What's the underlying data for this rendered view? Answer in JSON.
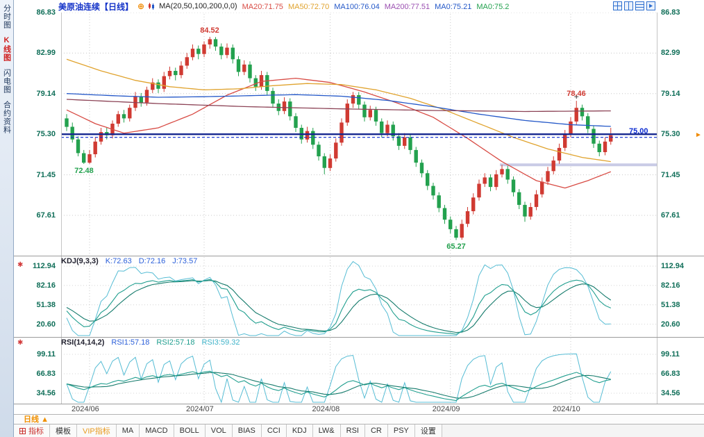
{
  "sidebar": {
    "tabs": [
      {
        "label": "分时图",
        "active": false
      },
      {
        "label": "K线图",
        "active": true
      },
      {
        "label": "闪电图",
        "active": false
      },
      {
        "label": "合约资料",
        "active": false
      }
    ]
  },
  "header": {
    "title": "美原油连续【日线】",
    "title_color": "#1433c8",
    "ma_label": "MA(20,50,100,200,0,0)",
    "ma_values": [
      {
        "text": "MA20:71.75",
        "color": "#d84b44"
      },
      {
        "text": "MA50:72.70",
        "color": "#e0a32e"
      },
      {
        "text": "MA100:76.04",
        "color": "#2458c8"
      },
      {
        "text": "MA200:77.51",
        "color": "#9a4fb0"
      },
      {
        "text": "MA0:75.21",
        "color": "#2458c8"
      },
      {
        "text": "MA0:75.2",
        "color": "#23a14e"
      }
    ]
  },
  "chart_data": {
    "type": "candlestick",
    "title": "美原油连续 日线 (US Crude Oil Continuous, Daily)",
    "up_color": "#d03a32",
    "down_color": "#23a14e",
    "y_axis_labels": [
      "86.83",
      "82.99",
      "79.14",
      "75.30",
      "71.45",
      "67.61"
    ],
    "month_labels": [
      "2024/06",
      "2024/07",
      "2024/08",
      "2024/09",
      "2024/10"
    ],
    "month_boundaries": [
      4,
      24,
      46,
      67,
      88
    ],
    "annotations": {
      "peak": "84.52",
      "low1": "72.48",
      "high2": "78.46",
      "low2": "65.27",
      "price": "75.00"
    },
    "price_line": {
      "value": 75.0,
      "color": "#0a2ad0"
    },
    "trend_line": {
      "value": 75.3,
      "color": "#16288f"
    },
    "segment_line": {
      "value": 72.4,
      "color": "#c9cbe6"
    },
    "candles": [
      [
        76.8,
        77.2,
        75.6,
        76.0
      ],
      [
        76.0,
        76.4,
        74.5,
        74.8
      ],
      [
        74.8,
        75.1,
        73.2,
        73.5
      ],
      [
        73.5,
        73.8,
        72.48,
        72.6
      ],
      [
        72.6,
        73.8,
        72.5,
        73.4
      ],
      [
        73.4,
        75.0,
        73.1,
        74.6
      ],
      [
        74.6,
        75.9,
        74.3,
        75.5
      ],
      [
        75.5,
        75.9,
        74.8,
        75.2
      ],
      [
        75.2,
        76.6,
        74.9,
        76.3
      ],
      [
        76.3,
        77.5,
        76.0,
        77.2
      ],
      [
        77.2,
        77.6,
        76.4,
        76.8
      ],
      [
        76.8,
        78.1,
        76.5,
        77.8
      ],
      [
        77.8,
        79.3,
        77.5,
        78.9
      ],
      [
        78.9,
        79.2,
        77.9,
        78.3
      ],
      [
        78.3,
        79.8,
        78.0,
        79.5
      ],
      [
        79.5,
        80.6,
        79.2,
        80.2
      ],
      [
        80.2,
        80.5,
        79.2,
        79.6
      ],
      [
        79.6,
        81.2,
        79.3,
        80.8
      ],
      [
        80.8,
        81.7,
        80.5,
        81.3
      ],
      [
        81.3,
        81.6,
        80.4,
        80.9
      ],
      [
        80.9,
        82.2,
        80.6,
        81.8
      ],
      [
        81.8,
        83.0,
        81.5,
        82.6
      ],
      [
        82.6,
        83.8,
        82.3,
        83.4
      ],
      [
        83.4,
        83.7,
        82.4,
        82.9
      ],
      [
        82.9,
        84.1,
        82.6,
        83.8
      ],
      [
        83.8,
        84.52,
        83.4,
        84.3
      ],
      [
        84.3,
        84.5,
        83.2,
        83.6
      ],
      [
        83.6,
        83.9,
        82.4,
        82.8
      ],
      [
        82.8,
        83.9,
        82.5,
        83.5
      ],
      [
        83.5,
        83.8,
        82.0,
        82.4
      ],
      [
        82.4,
        82.7,
        80.8,
        81.2
      ],
      [
        81.2,
        82.3,
        80.9,
        81.9
      ],
      [
        81.9,
        82.2,
        80.2,
        80.6
      ],
      [
        80.6,
        80.9,
        79.4,
        79.8
      ],
      [
        79.8,
        81.3,
        79.5,
        80.9
      ],
      [
        80.9,
        81.2,
        79.0,
        79.4
      ],
      [
        79.4,
        79.7,
        77.8,
        78.2
      ],
      [
        78.2,
        78.6,
        77.1,
        77.5
      ],
      [
        77.5,
        78.8,
        77.2,
        78.4
      ],
      [
        78.4,
        78.7,
        76.6,
        77.0
      ],
      [
        77.0,
        77.3,
        75.5,
        75.9
      ],
      [
        75.9,
        76.2,
        74.4,
        74.8
      ],
      [
        74.8,
        76.0,
        74.5,
        75.6
      ],
      [
        75.6,
        75.9,
        73.9,
        74.3
      ],
      [
        74.3,
        74.6,
        72.8,
        73.2
      ],
      [
        73.2,
        73.5,
        71.5,
        72.1
      ],
      [
        72.1,
        73.4,
        71.8,
        73.0
      ],
      [
        73.0,
        74.9,
        72.7,
        74.5
      ],
      [
        74.5,
        76.8,
        74.2,
        76.4
      ],
      [
        76.4,
        78.6,
        76.1,
        78.2
      ],
      [
        78.2,
        79.3,
        77.8,
        79.0
      ],
      [
        79.0,
        79.3,
        77.7,
        78.1
      ],
      [
        78.1,
        78.4,
        76.5,
        76.9
      ],
      [
        76.9,
        78.0,
        76.6,
        77.6
      ],
      [
        77.6,
        77.9,
        76.1,
        76.5
      ],
      [
        76.5,
        76.8,
        75.0,
        75.4
      ],
      [
        75.4,
        76.6,
        75.1,
        76.2
      ],
      [
        76.2,
        76.5,
        74.7,
        75.1
      ],
      [
        75.1,
        75.4,
        73.8,
        74.2
      ],
      [
        74.2,
        75.4,
        73.9,
        75.0
      ],
      [
        75.0,
        75.3,
        73.4,
        73.8
      ],
      [
        73.8,
        74.1,
        72.2,
        72.6
      ],
      [
        72.6,
        72.9,
        71.2,
        71.6
      ],
      [
        71.6,
        71.9,
        70.0,
        70.4
      ],
      [
        70.4,
        70.7,
        69.1,
        69.5
      ],
      [
        69.5,
        69.8,
        67.9,
        68.3
      ],
      [
        68.3,
        68.6,
        66.8,
        67.2
      ],
      [
        67.2,
        67.5,
        65.9,
        66.3
      ],
      [
        66.3,
        66.6,
        65.27,
        65.5
      ],
      [
        65.5,
        67.2,
        65.3,
        66.8
      ],
      [
        66.8,
        68.4,
        66.5,
        68.0
      ],
      [
        68.0,
        69.7,
        67.7,
        69.3
      ],
      [
        69.3,
        71.0,
        69.0,
        70.6
      ],
      [
        70.6,
        71.6,
        70.3,
        71.2
      ],
      [
        71.2,
        71.5,
        69.9,
        70.3
      ],
      [
        70.3,
        71.9,
        70.0,
        71.5
      ],
      [
        71.5,
        72.4,
        71.2,
        72.0
      ],
      [
        72.0,
        72.3,
        70.6,
        71.0
      ],
      [
        71.0,
        71.3,
        69.4,
        69.8
      ],
      [
        69.8,
        70.1,
        68.2,
        68.6
      ],
      [
        68.6,
        68.9,
        67.0,
        67.5
      ],
      [
        67.5,
        68.8,
        67.2,
        68.4
      ],
      [
        68.4,
        70.0,
        68.1,
        69.6
      ],
      [
        69.6,
        71.2,
        69.3,
        70.8
      ],
      [
        70.8,
        72.2,
        70.5,
        71.8
      ],
      [
        71.8,
        73.2,
        71.5,
        72.8
      ],
      [
        72.8,
        74.4,
        72.5,
        74.0
      ],
      [
        74.0,
        75.7,
        73.7,
        75.3
      ],
      [
        75.3,
        76.9,
        75.0,
        76.5
      ],
      [
        76.5,
        78.46,
        76.2,
        77.8
      ],
      [
        77.8,
        78.1,
        76.6,
        77.0
      ],
      [
        77.0,
        77.3,
        75.4,
        75.8
      ],
      [
        75.8,
        76.1,
        74.0,
        74.4
      ],
      [
        74.4,
        74.7,
        73.2,
        73.6
      ],
      [
        73.6,
        75.0,
        73.3,
        74.6
      ],
      [
        74.6,
        75.9,
        74.3,
        75.2
      ]
    ],
    "ma_lines": [
      {
        "name": "MA20",
        "color": "#d84b44",
        "points": [
          [
            0,
            77.6
          ],
          [
            5,
            76.3
          ],
          [
            10,
            75.4
          ],
          [
            16,
            75.9
          ],
          [
            22,
            77.2
          ],
          [
            28,
            79.0
          ],
          [
            34,
            80.3
          ],
          [
            40,
            80.6
          ],
          [
            46,
            80.2
          ],
          [
            52,
            79.3
          ],
          [
            58,
            78.2
          ],
          [
            64,
            76.9
          ],
          [
            70,
            74.9
          ],
          [
            76,
            72.7
          ],
          [
            82,
            70.9
          ],
          [
            87,
            70.2
          ],
          [
            91,
            70.9
          ],
          [
            95,
            71.75
          ]
        ]
      },
      {
        "name": "MA50",
        "color": "#e0a32e",
        "points": [
          [
            0,
            82.4
          ],
          [
            6,
            81.3
          ],
          [
            12,
            80.4
          ],
          [
            18,
            79.8
          ],
          [
            24,
            79.5
          ],
          [
            30,
            79.6
          ],
          [
            36,
            79.9
          ],
          [
            42,
            80.1
          ],
          [
            48,
            80.0
          ],
          [
            54,
            79.5
          ],
          [
            60,
            78.7
          ],
          [
            66,
            77.6
          ],
          [
            72,
            76.3
          ],
          [
            78,
            75.0
          ],
          [
            84,
            73.9
          ],
          [
            90,
            73.1
          ],
          [
            95,
            72.7
          ]
        ]
      },
      {
        "name": "MA100",
        "color": "#2458c8",
        "points": [
          [
            0,
            79.15
          ],
          [
            8,
            78.95
          ],
          [
            16,
            78.8
          ],
          [
            24,
            78.85
          ],
          [
            32,
            78.95
          ],
          [
            40,
            79.05
          ],
          [
            48,
            78.9
          ],
          [
            56,
            78.5
          ],
          [
            64,
            77.9
          ],
          [
            72,
            77.2
          ],
          [
            80,
            76.6
          ],
          [
            88,
            76.2
          ],
          [
            95,
            76.04
          ]
        ]
      },
      {
        "name": "MA200",
        "color": "#8c4356",
        "points": [
          [
            0,
            78.6
          ],
          [
            16,
            78.2
          ],
          [
            32,
            77.9
          ],
          [
            48,
            77.7
          ],
          [
            64,
            77.55
          ],
          [
            80,
            77.45
          ],
          [
            95,
            77.51
          ]
        ]
      }
    ]
  },
  "kdj": {
    "title": "KDJ(9,3,3)",
    "k": "K:72.63",
    "d": "D:72.16",
    "j": "J:73.57",
    "k_color": "#2b5fd9",
    "d_color": "#2b5fd9",
    "j_color": "#2b5fd9",
    "line_colors": {
      "k": "#1f9e8e",
      "d": "#147a6b",
      "j": "#55bcd4"
    },
    "axis": [
      "112.94",
      "82.16",
      "51.38",
      "20.60"
    ]
  },
  "rsi": {
    "title": "RSI(14,14,2)",
    "r1": "RSI1:57.18",
    "r2": "RSI2:57.18",
    "r3": "RSI3:59.32",
    "r1_color": "#2b5fd9",
    "r2_color": "#1f9e8e",
    "r3_color": "#3fb3c9",
    "line_colors": {
      "r1": "#1f9e8e",
      "r2": "#147a6b",
      "r3": "#55bcd4"
    },
    "axis": [
      "99.11",
      "66.83",
      "34.56"
    ]
  },
  "bottom": {
    "period": "日线",
    "period_arrow": "▲",
    "toolbar": [
      {
        "label": "指标",
        "color": "#c9302c",
        "icon": "grid"
      },
      {
        "label": "模板"
      },
      {
        "label": "VIP指标",
        "color": "#e89a1f"
      },
      {
        "label": "MA"
      },
      {
        "label": "MACD"
      },
      {
        "label": "BOLL"
      },
      {
        "label": "VOL"
      },
      {
        "label": "BIAS"
      },
      {
        "label": "CCI"
      },
      {
        "label": "KDJ"
      },
      {
        "label": "LW&"
      },
      {
        "label": "RSI"
      },
      {
        "label": "CR"
      },
      {
        "label": "PSY"
      },
      {
        "label": "设置"
      }
    ]
  }
}
